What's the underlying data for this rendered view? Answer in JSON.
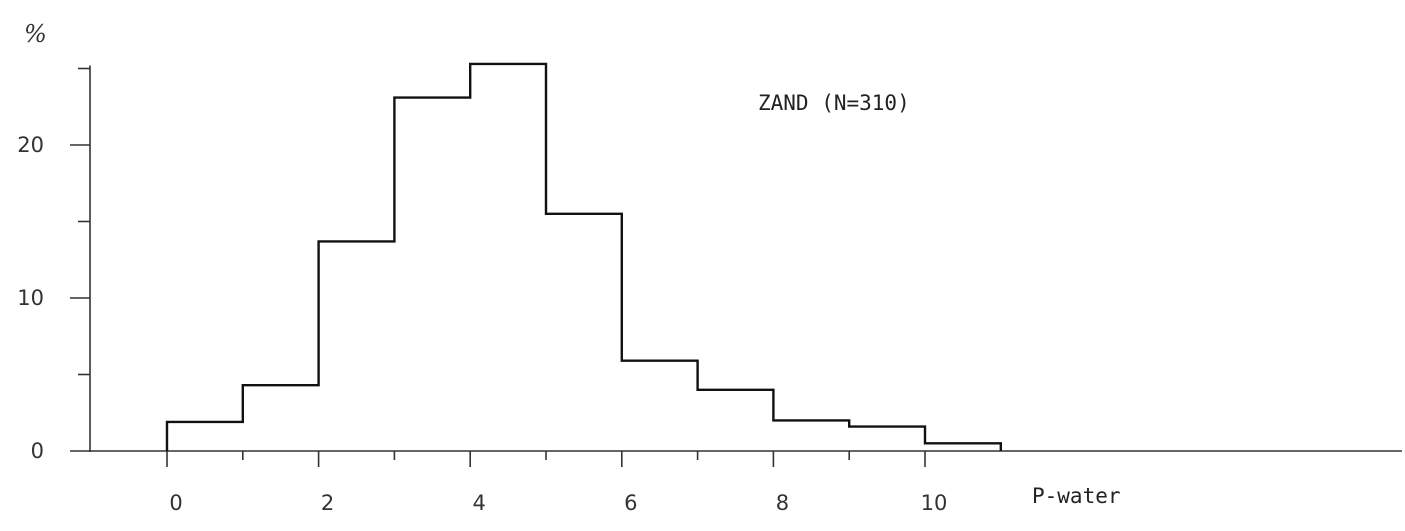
{
  "chart_data": {
    "type": "bar",
    "title": "",
    "annotation": "ZAND (N=310)",
    "xlabel": "P-water",
    "ylabel": "%",
    "bin_edges": [
      0,
      1,
      2,
      3,
      4,
      5,
      6,
      7,
      8,
      9,
      10,
      11
    ],
    "values": [
      1.9,
      4.3,
      13.7,
      23.1,
      25.3,
      15.5,
      5.9,
      4.0,
      2.0,
      1.6,
      0.5
    ],
    "x_ticks": [
      0,
      2,
      4,
      6,
      8,
      10
    ],
    "x_minor_ticks": [
      1,
      3,
      5,
      7,
      9
    ],
    "y_ticks": [
      0,
      10,
      20
    ],
    "y_minor_ticks": [
      5,
      15,
      25
    ],
    "xlim": [
      -1,
      16.5
    ],
    "ylim": [
      0,
      25
    ],
    "grid": false,
    "legend": "none"
  }
}
